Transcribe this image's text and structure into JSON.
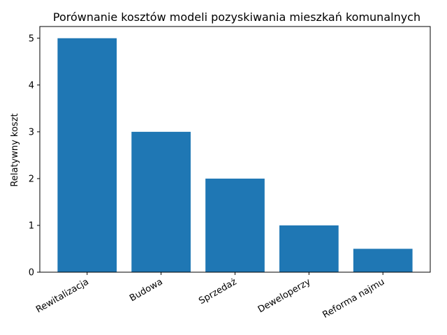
{
  "chart_data": {
    "type": "bar",
    "title": "Porównanie kosztów modeli pozyskiwania mieszkań komunalnych",
    "xlabel": "",
    "ylabel": "Relatywny koszt",
    "categories": [
      "Rewitalizacja",
      "Budowa",
      "Sprzedaż",
      "Deweloperzy",
      "Reforma najmu"
    ],
    "values": [
      5,
      3,
      2,
      1,
      0.5
    ],
    "ylim": [
      0,
      5.25
    ],
    "yticks": [
      0,
      1,
      2,
      3,
      4,
      5
    ],
    "grid": false,
    "bar_color": "#1f77b4"
  }
}
